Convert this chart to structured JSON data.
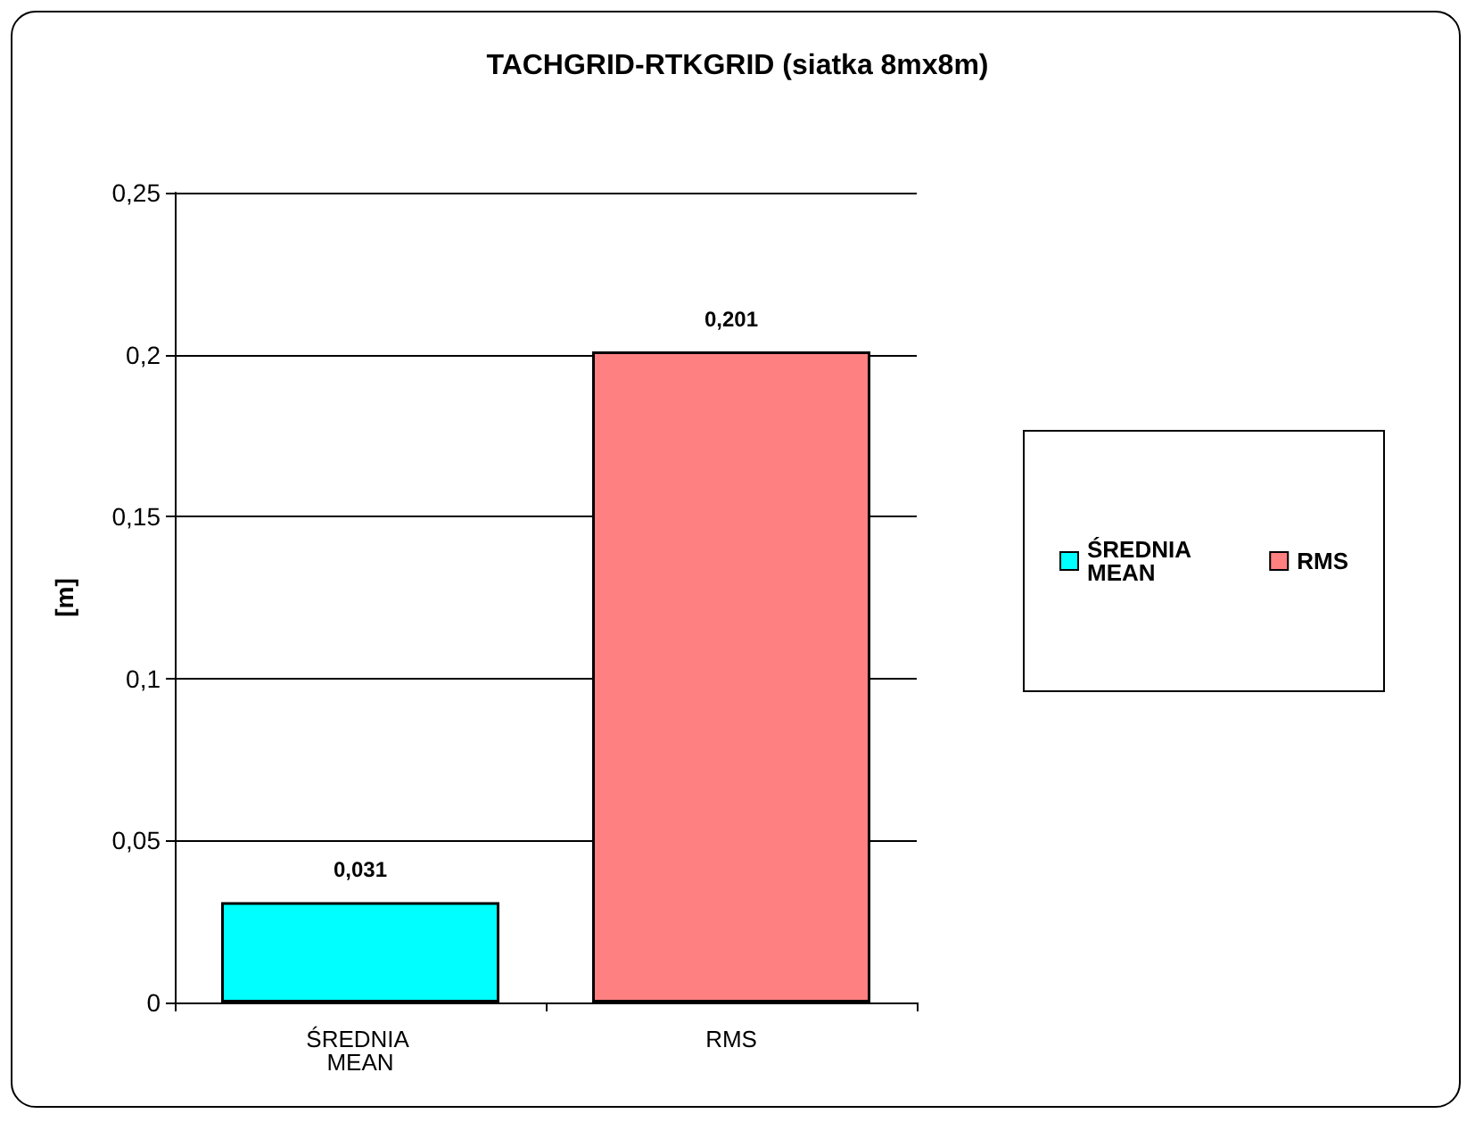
{
  "chart_data": {
    "type": "bar",
    "title": "TACHGRID-RTKGRID (siatka 8mx8m)",
    "ylabel": "[m]",
    "categories": [
      "ŚREDNIA MEAN",
      "RMS"
    ],
    "series": [
      {
        "name": "ŚREDNIA MEAN",
        "color": "#00ffff",
        "values": [
          0.031,
          null
        ],
        "value_labels": [
          "0,031",
          null
        ]
      },
      {
        "name": "RMS",
        "color": "#ff8080",
        "values": [
          null,
          0.201
        ],
        "value_labels": [
          null,
          "0,201"
        ]
      }
    ],
    "ylim": [
      0,
      0.25
    ],
    "yticks": [
      0,
      {
        "value": 0.05,
        "label": "0,05"
      },
      {
        "value": 0.1,
        "label": "0,1"
      },
      {
        "value": 0.15,
        "label": "0,15"
      },
      {
        "value": 0.2,
        "label": "0,2"
      },
      {
        "value": 0.25,
        "label": "0,25"
      }
    ],
    "grid": "y",
    "legend": "right"
  }
}
